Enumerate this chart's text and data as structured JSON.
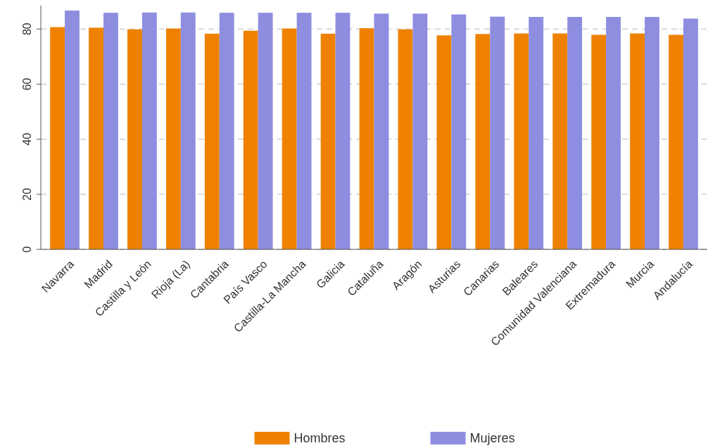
{
  "chart_data": {
    "type": "bar",
    "categories": [
      "Navarra",
      "Madrid",
      "Castilla y León",
      "Rioja (La)",
      "Cantabria",
      "País Vasco",
      "Castilla-La Mancha",
      "Galicia",
      "Cataluña",
      "Aragón",
      "Asturias",
      "Canarias",
      "Baleares",
      "Comunidad Valenciana",
      "Extremadura",
      "Murcia",
      "Andalucía"
    ],
    "series": [
      {
        "name": "Hombres",
        "color": "#ee8200",
        "values": [
          80.7,
          80.5,
          79.9,
          80.2,
          78.3,
          79.4,
          80.2,
          78.3,
          80.3,
          79.9,
          77.7,
          78.2,
          78.4,
          78.4,
          77.9,
          78.4,
          77.9
        ]
      },
      {
        "name": "Mujeres",
        "color": "#8e8ee0",
        "values": [
          86.7,
          85.9,
          86,
          86,
          85.9,
          85.9,
          85.9,
          85.9,
          85.6,
          85.6,
          85.3,
          84.5,
          84.4,
          84.4,
          84.4,
          84.4,
          83.8
        ]
      }
    ],
    "ylim": [
      0,
      88.5
    ],
    "yticks": [
      0,
      20,
      40,
      60,
      80
    ],
    "grid": "y",
    "legend": "bottom"
  }
}
